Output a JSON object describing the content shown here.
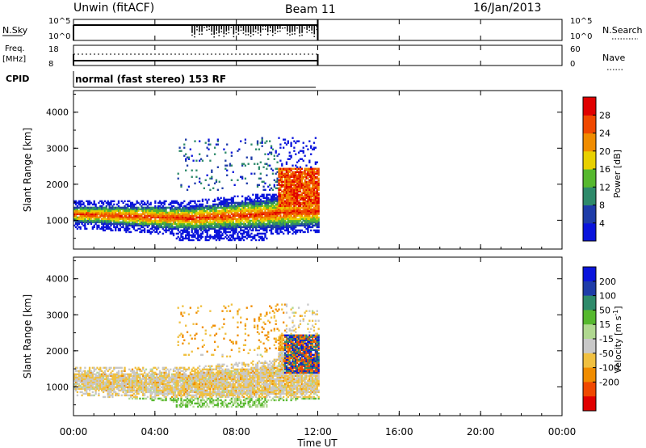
{
  "header": {
    "station": "Unwin (fitACF)",
    "beam": "Beam 11",
    "date": "16/Jan/2013"
  },
  "nsky_panel": {
    "left_label": "N.Sky",
    "left_ticks": [
      "10^5",
      "10^0"
    ],
    "right_label": "N.Search",
    "right_ticks": [
      "10^5",
      "10^0"
    ]
  },
  "freq_panel": {
    "left_label_1": "Freq.",
    "left_label_2": "[MHz]",
    "left_ticks": [
      "18",
      "8"
    ],
    "right_label": "Nave",
    "right_ticks": [
      "60",
      "0"
    ]
  },
  "cpid": {
    "label": "CPID",
    "text": "normal (fast stereo) 153 RF"
  },
  "colors": {
    "power_scale": [
      "#0a14dc",
      "#1e3ca8",
      "#2e8a6a",
      "#56b82e",
      "#e8d000",
      "#f08c00",
      "#f04800",
      "#e00000"
    ],
    "velocity_scale": [
      "#e00000",
      "#f04800",
      "#f08c00",
      "#f0c040",
      "#c8c8c8",
      "#b0d890",
      "#56b82e",
      "#2e8a6a",
      "#1e3ca8",
      "#0a14dc"
    ]
  },
  "chart_data": [
    {
      "type": "heatmap",
      "name": "power",
      "xlabel": "Time UT",
      "ylabel": "Slant Range [km]",
      "x_ticks": [
        "00:00",
        "04:00",
        "08:00",
        "12:00",
        "16:00",
        "20:00",
        "00:00"
      ],
      "xlim_hours": [
        0,
        24
      ],
      "ylim_km": [
        200,
        4600
      ],
      "y_ticks": [
        1000,
        2000,
        3000,
        4000
      ],
      "colorbar": {
        "label": "Power [dB]",
        "ticks": [
          4,
          8,
          12,
          16,
          20,
          24,
          28
        ],
        "range": [
          0,
          32
        ]
      },
      "data_extent_hours": [
        0,
        12
      ]
    },
    {
      "type": "heatmap",
      "name": "velocity",
      "xlabel": "Time UT",
      "ylabel": "Slant Range [km]",
      "x_ticks": [
        "00:00",
        "04:00",
        "08:00",
        "12:00",
        "16:00",
        "20:00",
        "00:00"
      ],
      "xlim_hours": [
        0,
        24
      ],
      "ylim_km": [
        200,
        4600
      ],
      "y_ticks": [
        1000,
        2000,
        3000,
        4000
      ],
      "colorbar": {
        "label": "Velocity [m s",
        "label_sup": "-1",
        "label_end": "]",
        "ticks": [
          "200",
          "100",
          "50",
          "15",
          "-15",
          "-50",
          "-100",
          "-200"
        ]
      },
      "data_extent_hours": [
        0,
        12
      ]
    }
  ]
}
